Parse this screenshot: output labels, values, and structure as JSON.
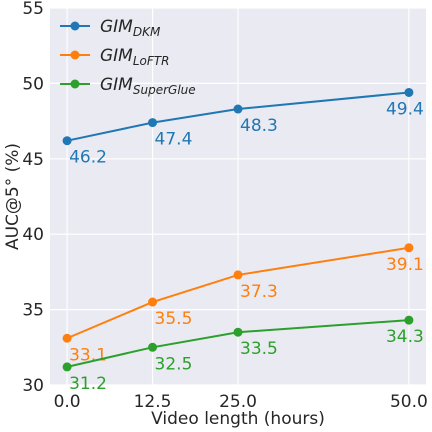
{
  "chart_data": {
    "type": "line",
    "xlabel": "Video length (hours)",
    "ylabel": "AUC@5° (%)",
    "x": [
      0.0,
      12.5,
      25.0,
      50.0
    ],
    "x_tick_labels": [
      "0.0",
      "12.5",
      "25.0",
      "50.0"
    ],
    "xlim": [
      -2.5,
      52.5
    ],
    "ylim": [
      30,
      55
    ],
    "y_ticks": [
      30,
      35,
      40,
      45,
      50,
      55
    ],
    "grid": true,
    "legend_position": "top-left",
    "series": [
      {
        "name_main": "GIM",
        "name_sub": "DKM",
        "color": "#1f77b4",
        "values": [
          46.2,
          47.4,
          48.3,
          49.4
        ],
        "labels": [
          "46.2",
          "47.4",
          "48.3",
          "49.4"
        ]
      },
      {
        "name_main": "GIM",
        "name_sub": "LoFTR",
        "color": "#ff7f0e",
        "values": [
          33.1,
          35.5,
          37.3,
          39.1
        ],
        "labels": [
          "33.1",
          "35.5",
          "37.3",
          "39.1"
        ]
      },
      {
        "name_main": "GIM",
        "name_sub": "SuperGlue",
        "color": "#2ca02c",
        "values": [
          31.2,
          32.5,
          33.5,
          34.3
        ],
        "labels": [
          "31.2",
          "32.5",
          "33.5",
          "34.3"
        ]
      }
    ]
  }
}
